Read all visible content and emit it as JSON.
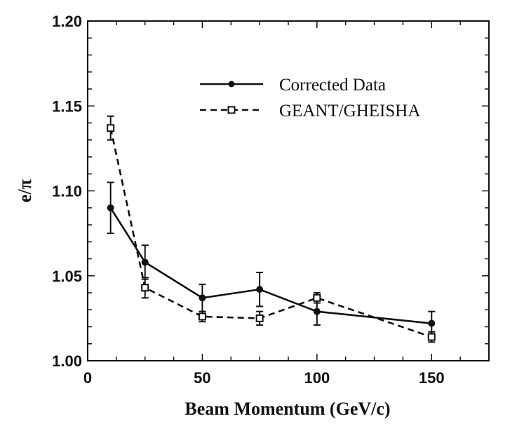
{
  "chart_data": {
    "type": "line",
    "title": "",
    "xlabel": "Beam Momentum (GeV/c)",
    "ylabel": "e/π",
    "xlim": [
      0,
      175
    ],
    "ylim": [
      1.0,
      1.2
    ],
    "x_ticks": [
      0,
      50,
      100,
      150
    ],
    "x_tick_labels": [
      "0",
      "50",
      "100",
      "150"
    ],
    "y_ticks": [
      1.0,
      1.05,
      1.1,
      1.15,
      1.2
    ],
    "y_tick_labels": [
      "1.00",
      "1.05",
      "1.10",
      "1.15",
      "1.20"
    ],
    "grid": false,
    "legend_position": "top-right",
    "series": [
      {
        "name": "Corrected Data",
        "style": "solid",
        "marker": "filled-circle",
        "x": [
          10,
          25,
          50,
          75,
          100,
          150
        ],
        "y": [
          1.09,
          1.058,
          1.037,
          1.042,
          1.029,
          1.022
        ],
        "err": [
          0.015,
          0.01,
          0.008,
          0.01,
          0.008,
          0.007
        ]
      },
      {
        "name": "GEANT/GHEISHA",
        "style": "dashed",
        "marker": "open-square",
        "x": [
          10,
          25,
          50,
          75,
          100,
          150
        ],
        "y": [
          1.137,
          1.043,
          1.026,
          1.025,
          1.037,
          1.014
        ],
        "err": [
          0.007,
          0.006,
          0.003,
          0.004,
          0.003,
          0.003
        ]
      }
    ]
  }
}
